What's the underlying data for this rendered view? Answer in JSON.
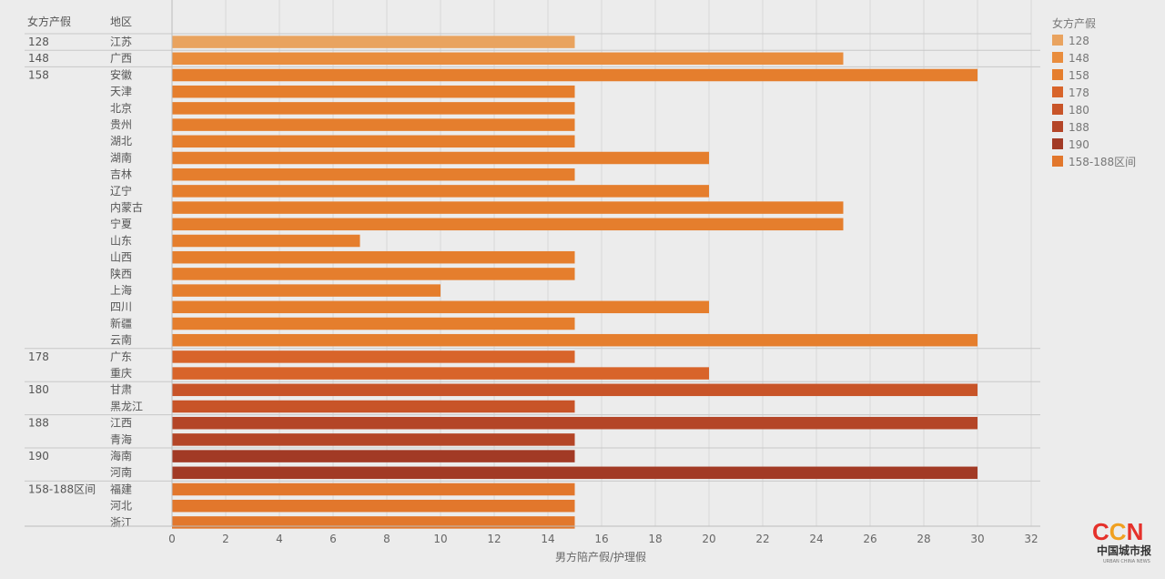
{
  "header": {
    "col1": "女方产假",
    "col2": "地区"
  },
  "chart_data": {
    "type": "bar",
    "orientation": "horizontal",
    "xlabel": "男方陪产假/护理假",
    "xlim": [
      0,
      32
    ],
    "xticks": [
      0,
      2,
      4,
      6,
      8,
      10,
      12,
      14,
      16,
      18,
      20,
      22,
      24,
      26,
      28,
      30,
      32
    ],
    "legend_title": "女方产假",
    "legend_position": "right",
    "groups": [
      {
        "label": "128",
        "color": "#e9a35f",
        "rows": [
          {
            "region": "江苏",
            "value": 15
          }
        ]
      },
      {
        "label": "148",
        "color": "#e98d3d",
        "rows": [
          {
            "region": "广西",
            "value": 25
          }
        ]
      },
      {
        "label": "158",
        "color": "#e57e2d",
        "rows": [
          {
            "region": "安徽",
            "value": 30
          },
          {
            "region": "天津",
            "value": 15
          },
          {
            "region": "北京",
            "value": 15
          },
          {
            "region": "贵州",
            "value": 15
          },
          {
            "region": "湖北",
            "value": 15
          },
          {
            "region": "湖南",
            "value": 20
          },
          {
            "region": "吉林",
            "value": 15
          },
          {
            "region": "辽宁",
            "value": 20
          },
          {
            "region": "内蒙古",
            "value": 25
          },
          {
            "region": "宁夏",
            "value": 25
          },
          {
            "region": "山东",
            "value": 7
          },
          {
            "region": "山西",
            "value": 15
          },
          {
            "region": "陕西",
            "value": 15
          },
          {
            "region": "上海",
            "value": 10
          },
          {
            "region": "四川",
            "value": 20
          },
          {
            "region": "新疆",
            "value": 15
          },
          {
            "region": "云南",
            "value": 30
          }
        ]
      },
      {
        "label": "178",
        "color": "#d8642a",
        "rows": [
          {
            "region": "广东",
            "value": 15
          },
          {
            "region": "重庆",
            "value": 20
          }
        ]
      },
      {
        "label": "180",
        "color": "#c85428",
        "rows": [
          {
            "region": "甘肃",
            "value": 30
          },
          {
            "region": "黑龙江",
            "value": 15
          }
        ]
      },
      {
        "label": "188",
        "color": "#b44527",
        "rows": [
          {
            "region": "江西",
            "value": 30
          },
          {
            "region": "青海",
            "value": 15
          }
        ]
      },
      {
        "label": "190",
        "color": "#a23a25",
        "rows": [
          {
            "region": "海南",
            "value": 15
          },
          {
            "region": "河南",
            "value": 30
          }
        ]
      },
      {
        "label": "158-188区间",
        "color": "#e2772c",
        "rows": [
          {
            "region": "福建",
            "value": 15
          },
          {
            "region": "河北",
            "value": 15
          },
          {
            "region": "浙江",
            "value": 15
          }
        ]
      }
    ]
  },
  "logo": {
    "mark": "CCN",
    "colors": [
      "#e5312b",
      "#f0a020",
      "#e5312b"
    ],
    "name": "中国城市报",
    "tagline": "URBAN CHINA NEWS"
  }
}
